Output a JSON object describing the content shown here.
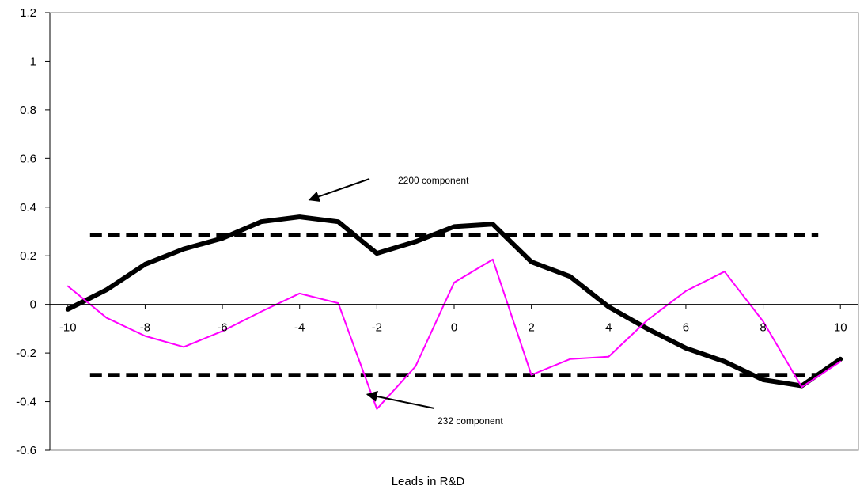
{
  "chart_data": {
    "type": "line",
    "title": "",
    "xlabel": "Leads in R&D",
    "ylabel": "",
    "xlim": [
      -10,
      10
    ],
    "ylim": [
      -0.6,
      1.2
    ],
    "x_ticks": [
      -10,
      -8,
      -6,
      -4,
      -2,
      0,
      2,
      4,
      6,
      8,
      10
    ],
    "y_ticks": [
      -0.6,
      -0.4,
      -0.2,
      0,
      0.2,
      0.4,
      0.6,
      0.8,
      1,
      1.2
    ],
    "y_tick_labels": [
      "-0.6",
      "-0.4",
      "-0.2",
      "0",
      "0.2",
      "0.4",
      "0.6",
      "0.8",
      "1",
      "1.2"
    ],
    "grid": false,
    "legend": "none",
    "x": [
      -10,
      -9,
      -8,
      -7,
      -6,
      -5,
      -4,
      -3,
      -2,
      -1,
      0,
      1,
      2,
      3,
      4,
      5,
      6,
      7,
      8,
      9,
      10
    ],
    "series": [
      {
        "values": [
          -0.02,
          0.06,
          0.165,
          0.228,
          0.272,
          0.34,
          0.36,
          0.34,
          0.21,
          0.258,
          0.32,
          0.33,
          0.175,
          0.115,
          -0.01,
          -0.1,
          -0.18,
          -0.235,
          -0.31,
          -0.335,
          -0.225
        ],
        "color": "#000000",
        "style": "thick-solid"
      },
      {
        "values": [
          0.075,
          -0.055,
          -0.13,
          -0.175,
          -0.11,
          -0.03,
          0.045,
          0.005,
          -0.43,
          -0.255,
          0.09,
          0.185,
          -0.29,
          -0.225,
          -0.215,
          -0.065,
          0.055,
          0.135,
          -0.07,
          -0.34,
          -0.235
        ],
        "color": "#ff00ff",
        "style": "thin-solid"
      }
    ],
    "reference_lines": [
      {
        "y": 0.285,
        "color": "#000000",
        "style": "dashed"
      },
      {
        "y": -0.29,
        "color": "#000000",
        "style": "dashed"
      }
    ],
    "annotations": [
      {
        "text": "2200 component",
        "arrow_to": {
          "x": -3.75,
          "y": 0.43
        }
      },
      {
        "text": "232 component",
        "arrow_to": {
          "x": -2.25,
          "y": -0.37
        }
      }
    ]
  }
}
